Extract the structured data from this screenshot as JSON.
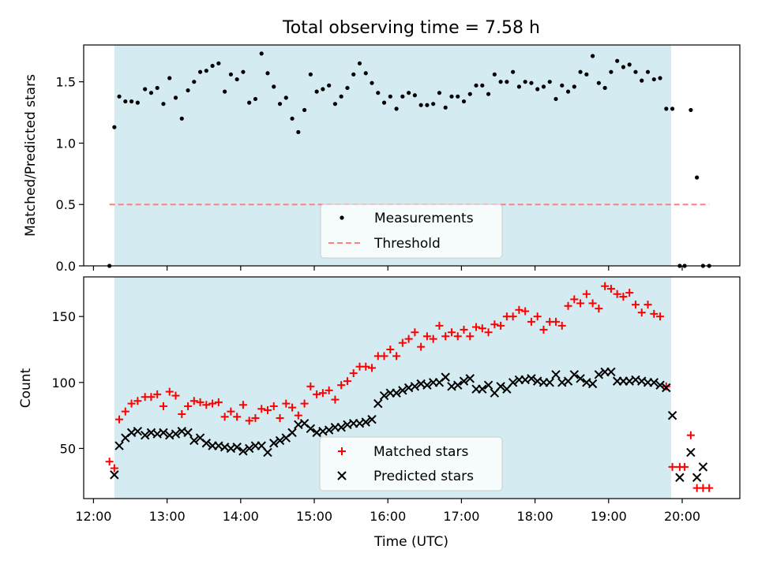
{
  "chart_data": [
    {
      "type": "scatter",
      "title": "Total observing time = 7.58 h",
      "xlabel": "",
      "ylabel": "Matched/Predicted stars",
      "ylim": [
        0,
        1.8
      ],
      "yticks": [
        "0.0",
        "0.5",
        "1.0",
        "1.5"
      ],
      "shaded_interval": [
        "12:17",
        "19:51"
      ],
      "legend": {
        "position": "bottom-center",
        "entries": [
          "Measurements",
          "Threshold"
        ]
      },
      "threshold": {
        "name": "Threshold",
        "value": 0.5,
        "color": "#ff7f7f",
        "style": "dashed"
      },
      "series": [
        {
          "name": "Measurements",
          "marker": "dot",
          "color": "#000000",
          "x": [
            "12:13",
            "12:17",
            "12:21",
            "12:26",
            "12:31",
            "12:36",
            "12:42",
            "12:47",
            "12:52",
            "12:57",
            "13:02",
            "13:07",
            "13:12",
            "13:17",
            "13:22",
            "13:27",
            "13:32",
            "13:37",
            "13:42",
            "13:47",
            "13:52",
            "13:57",
            "14:02",
            "14:07",
            "14:12",
            "14:17",
            "14:22",
            "14:27",
            "14:32",
            "14:37",
            "14:42",
            "14:47",
            "14:52",
            "14:57",
            "15:02",
            "15:07",
            "15:12",
            "15:17",
            "15:22",
            "15:27",
            "15:32",
            "15:37",
            "15:42",
            "15:47",
            "15:52",
            "15:57",
            "16:02",
            "16:07",
            "16:12",
            "16:17",
            "16:22",
            "16:27",
            "16:32",
            "16:37",
            "16:42",
            "16:47",
            "16:52",
            "16:57",
            "17:02",
            "17:07",
            "17:12",
            "17:17",
            "17:22",
            "17:27",
            "17:32",
            "17:37",
            "17:42",
            "17:47",
            "17:52",
            "17:57",
            "18:02",
            "18:07",
            "18:12",
            "18:17",
            "18:22",
            "18:27",
            "18:32",
            "18:37",
            "18:42",
            "18:47",
            "18:52",
            "18:57",
            "19:02",
            "19:07",
            "19:12",
            "19:17",
            "19:22",
            "19:27",
            "19:32",
            "19:37",
            "19:42",
            "19:47",
            "19:52",
            "19:58",
            "20:02",
            "20:07",
            "20:12",
            "20:17",
            "20:22"
          ],
          "y": [
            0.0,
            1.13,
            1.38,
            1.34,
            1.34,
            1.33,
            1.44,
            1.41,
            1.45,
            1.32,
            1.53,
            1.37,
            1.2,
            1.43,
            1.5,
            1.58,
            1.59,
            1.63,
            1.65,
            1.42,
            1.56,
            1.52,
            1.58,
            1.33,
            1.36,
            1.73,
            1.57,
            1.46,
            1.32,
            1.37,
            1.2,
            1.09,
            1.27,
            1.56,
            1.42,
            1.44,
            1.47,
            1.32,
            1.38,
            1.45,
            1.56,
            1.65,
            1.57,
            1.49,
            1.41,
            1.33,
            1.38,
            1.28,
            1.38,
            1.41,
            1.39,
            1.31,
            1.31,
            1.32,
            1.41,
            1.29,
            1.38,
            1.38,
            1.34,
            1.4,
            1.47,
            1.47,
            1.4,
            1.56,
            1.5,
            1.5,
            1.58,
            1.46,
            1.5,
            1.49,
            1.44,
            1.46,
            1.5,
            1.36,
            1.47,
            1.42,
            1.46,
            1.58,
            1.56,
            1.71,
            1.49,
            1.45,
            1.58,
            1.67,
            1.62,
            1.64,
            1.58,
            1.51,
            1.58,
            1.52,
            1.53,
            1.28,
            1.28,
            0.0,
            0.0,
            1.27,
            0.72,
            0.0,
            0.0
          ]
        }
      ]
    },
    {
      "type": "scatter",
      "title": "",
      "xlabel": "Time (UTC)",
      "ylabel": "Count",
      "ylim": [
        12,
        180
      ],
      "xlim": [
        "11:52",
        "20:47"
      ],
      "xticks": [
        "12:00",
        "13:00",
        "14:00",
        "15:00",
        "16:00",
        "17:00",
        "18:00",
        "19:00",
        "20:00"
      ],
      "yticks": [
        "50",
        "100",
        "150"
      ],
      "shaded_interval": [
        "12:17",
        "19:51"
      ],
      "legend": {
        "position": "bottom-center",
        "entries": [
          "Matched stars",
          "Predicted stars"
        ]
      },
      "series": [
        {
          "name": "Matched stars",
          "marker": "plus",
          "color": "#ff0000",
          "x": [
            "12:13",
            "12:17",
            "12:21",
            "12:26",
            "12:31",
            "12:36",
            "12:42",
            "12:47",
            "12:52",
            "12:57",
            "13:02",
            "13:07",
            "13:12",
            "13:17",
            "13:22",
            "13:27",
            "13:32",
            "13:37",
            "13:42",
            "13:47",
            "13:52",
            "13:57",
            "14:02",
            "14:07",
            "14:12",
            "14:17",
            "14:22",
            "14:27",
            "14:32",
            "14:37",
            "14:42",
            "14:47",
            "14:52",
            "14:57",
            "15:02",
            "15:07",
            "15:12",
            "15:17",
            "15:22",
            "15:27",
            "15:32",
            "15:37",
            "15:42",
            "15:47",
            "15:52",
            "15:57",
            "16:02",
            "16:07",
            "16:12",
            "16:17",
            "16:22",
            "16:27",
            "16:32",
            "16:37",
            "16:42",
            "16:47",
            "16:52",
            "16:57",
            "17:02",
            "17:07",
            "17:12",
            "17:17",
            "17:22",
            "17:27",
            "17:32",
            "17:37",
            "17:42",
            "17:47",
            "17:52",
            "17:57",
            "18:02",
            "18:07",
            "18:12",
            "18:17",
            "18:22",
            "18:27",
            "18:32",
            "18:37",
            "18:42",
            "18:47",
            "18:52",
            "18:57",
            "19:02",
            "19:07",
            "19:12",
            "19:17",
            "19:22",
            "19:27",
            "19:32",
            "19:37",
            "19:42",
            "19:47",
            "19:52",
            "19:58",
            "20:02",
            "20:07",
            "20:12",
            "20:17",
            "20:22"
          ],
          "y": [
            40,
            35,
            72,
            78,
            84,
            86,
            89,
            89,
            91,
            82,
            93,
            90,
            76,
            82,
            86,
            85,
            83,
            84,
            85,
            74,
            78,
            74,
            83,
            71,
            73,
            80,
            79,
            82,
            73,
            84,
            81,
            75,
            84,
            97,
            91,
            92,
            94,
            87,
            98,
            101,
            107,
            112,
            112,
            111,
            120,
            120,
            125,
            120,
            130,
            133,
            138,
            127,
            135,
            133,
            143,
            135,
            138,
            135,
            140,
            135,
            142,
            141,
            138,
            144,
            143,
            150,
            150,
            155,
            154,
            146,
            150,
            140,
            146,
            146,
            143,
            158,
            163,
            160,
            167,
            160,
            156,
            173,
            171,
            167,
            165,
            168,
            159,
            153,
            159,
            152,
            150,
            97,
            36,
            36,
            36,
            60,
            20,
            20,
            20
          ]
        },
        {
          "name": "Predicted stars",
          "marker": "x",
          "color": "#000000",
          "x": [
            "12:17",
            "12:21",
            "12:26",
            "12:31",
            "12:36",
            "12:42",
            "12:47",
            "12:52",
            "12:57",
            "13:02",
            "13:07",
            "13:12",
            "13:17",
            "13:22",
            "13:27",
            "13:32",
            "13:37",
            "13:42",
            "13:47",
            "13:52",
            "13:57",
            "14:02",
            "14:07",
            "14:12",
            "14:17",
            "14:22",
            "14:27",
            "14:32",
            "14:37",
            "14:42",
            "14:47",
            "14:52",
            "14:57",
            "15:02",
            "15:07",
            "15:12",
            "15:17",
            "15:22",
            "15:27",
            "15:32",
            "15:37",
            "15:42",
            "15:47",
            "15:52",
            "15:57",
            "16:02",
            "16:07",
            "16:12",
            "16:17",
            "16:22",
            "16:27",
            "16:32",
            "16:37",
            "16:42",
            "16:47",
            "16:52",
            "16:57",
            "17:02",
            "17:07",
            "17:12",
            "17:17",
            "17:22",
            "17:27",
            "17:32",
            "17:37",
            "17:42",
            "17:47",
            "17:52",
            "17:57",
            "18:02",
            "18:07",
            "18:12",
            "18:17",
            "18:22",
            "18:27",
            "18:32",
            "18:37",
            "18:42",
            "18:47",
            "18:52",
            "18:57",
            "19:02",
            "19:07",
            "19:12",
            "19:17",
            "19:22",
            "19:27",
            "19:32",
            "19:37",
            "19:42",
            "19:47",
            "19:52",
            "19:58",
            "20:07",
            "20:12",
            "20:17"
          ],
          "y": [
            30,
            52,
            58,
            62,
            63,
            60,
            62,
            61,
            62,
            60,
            61,
            63,
            62,
            56,
            58,
            54,
            52,
            52,
            51,
            50,
            51,
            48,
            50,
            52,
            52,
            47,
            54,
            56,
            58,
            62,
            68,
            69,
            65,
            62,
            63,
            64,
            66,
            66,
            68,
            69,
            69,
            70,
            72,
            84,
            90,
            92,
            92,
            94,
            96,
            97,
            99,
            98,
            100,
            100,
            104,
            97,
            98,
            101,
            103,
            95,
            95,
            98,
            92,
            97,
            95,
            100,
            102,
            102,
            103,
            101,
            100,
            100,
            106,
            100,
            101,
            106,
            103,
            100,
            99,
            106,
            108,
            108,
            101,
            101,
            101,
            102,
            101,
            100,
            100,
            98,
            96,
            75,
            28,
            47,
            28,
            36
          ]
        }
      ]
    }
  ]
}
